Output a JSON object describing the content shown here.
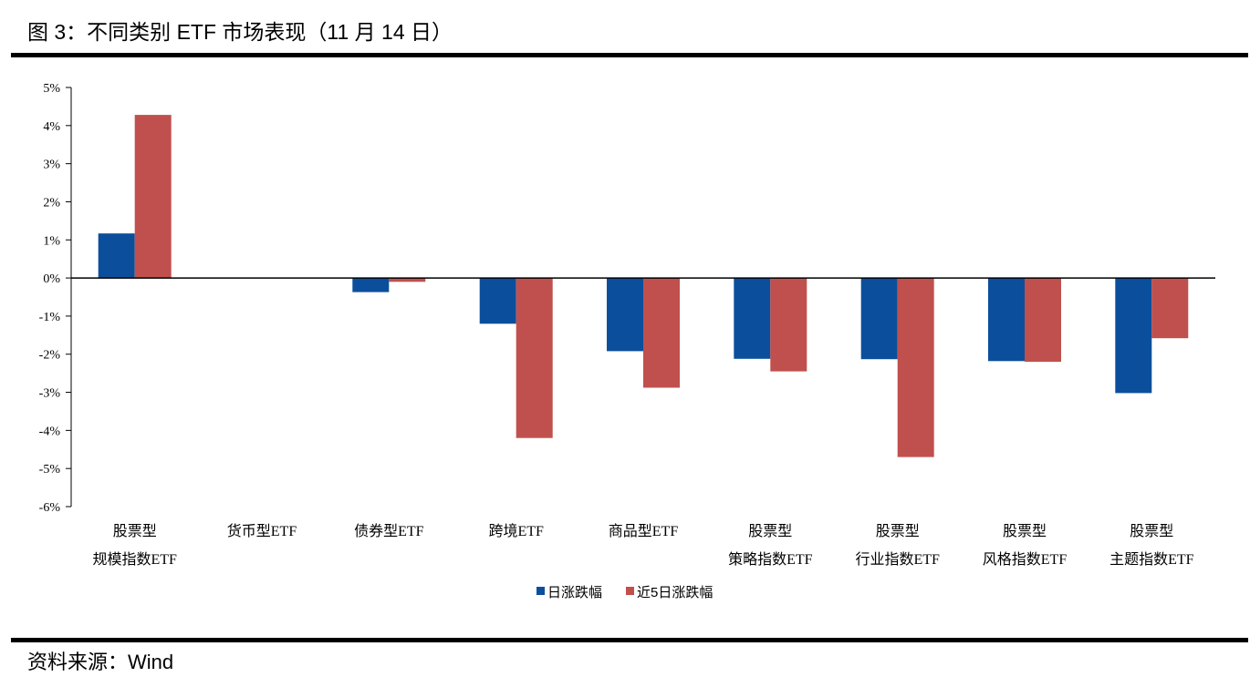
{
  "figure": {
    "title": "图 3：不同类别 ETF 市场表现（11 月 14 日）",
    "source": "资料来源：Wind"
  },
  "colors": {
    "series1": "#0b4f9c",
    "series2": "#c0504d",
    "axis": "#000000"
  },
  "chart_data": {
    "type": "bar",
    "title": "",
    "xlabel": "",
    "ylabel": "",
    "ylim": [
      -6,
      5
    ],
    "yticks": [
      5,
      4,
      3,
      2,
      1,
      0,
      -1,
      -2,
      -3,
      -4,
      -5,
      -6
    ],
    "ytick_labels": [
      "5%",
      "4%",
      "3%",
      "2%",
      "1%",
      "0%",
      "-1%",
      "-2%",
      "-3%",
      "-4%",
      "-5%",
      "-6%"
    ],
    "grid": false,
    "legend": "bottom-center",
    "categories": [
      [
        "股票型",
        "规模指数ETF"
      ],
      [
        "货币型ETF"
      ],
      [
        "债券型ETF"
      ],
      [
        "跨境ETF"
      ],
      [
        "商品型ETF"
      ],
      [
        "股票型",
        "策略指数ETF"
      ],
      [
        "股票型",
        "行业指数ETF"
      ],
      [
        "股票型",
        "风格指数ETF"
      ],
      [
        "股票型",
        "主题指数ETF"
      ]
    ],
    "series": [
      {
        "name": "日涨跌幅",
        "values": [
          1.17,
          0.0,
          -0.37,
          -1.2,
          -1.92,
          -2.12,
          -2.13,
          -2.18,
          -3.02
        ]
      },
      {
        "name": "近5日涨跌幅",
        "values": [
          4.28,
          0.0,
          -0.1,
          -4.2,
          -2.88,
          -2.45,
          -4.7,
          -2.2,
          -1.58
        ]
      }
    ]
  }
}
